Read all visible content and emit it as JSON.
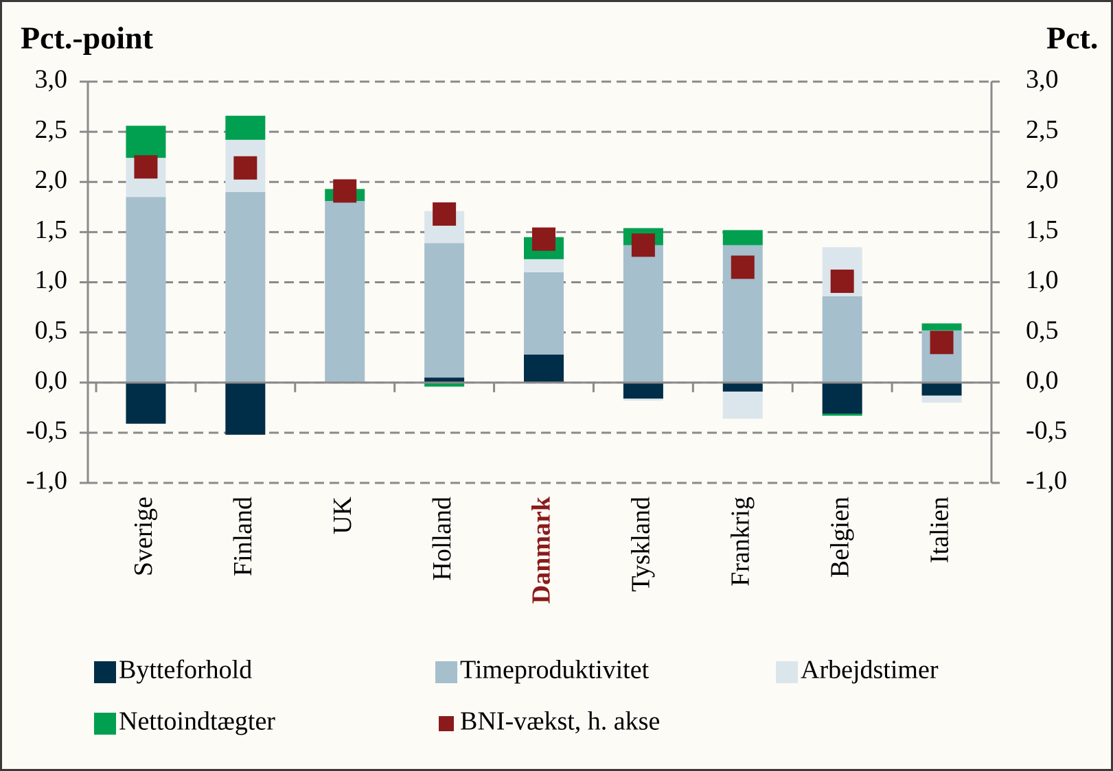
{
  "chart_data": {
    "type": "bar",
    "stacked": true,
    "y_label": "Pct.-point",
    "y2_label": "Pct.",
    "categories": [
      "Sverige",
      "Finland",
      "UK",
      "Holland",
      "Danmark",
      "Tyskland",
      "Frankrig",
      "Belgien",
      "Italien"
    ],
    "highlight": {
      "category": 4,
      "color": "#8b1a1a"
    },
    "series": [
      {
        "name": "Bytteforhold",
        "color": "#002d47",
        "values": [
          -0.41,
          -0.52,
          0,
          0.05,
          0.28,
          -0.16,
          -0.09,
          -0.31,
          -0.13
        ]
      },
      {
        "name": "Timeproduktivitet",
        "color": "#a5bfcd",
        "values": [
          1.85,
          1.9,
          1.81,
          1.34,
          0.82,
          1.37,
          1.37,
          0.86,
          0.52
        ]
      },
      {
        "name": "Arbejdstimer",
        "color": "#dbe6ec",
        "values": [
          0.39,
          0.52,
          0,
          0.32,
          0.13,
          -0.02,
          -0.27,
          0.49,
          -0.07
        ]
      },
      {
        "name": "Nettoindtægter",
        "color": "#00a050",
        "values": [
          0.32,
          0.24,
          0.12,
          -0.04,
          0.22,
          0.17,
          0.15,
          -0.02,
          0.07
        ]
      },
      {
        "name": "BNI-vækst, h. akse",
        "color": "#8b1a1a",
        "axis": "y2",
        "marker": "square",
        "values": [
          2.15,
          2.14,
          1.91,
          1.68,
          1.43,
          1.37,
          1.15,
          1.01,
          0.4
        ]
      }
    ],
    "ylim": [
      -1,
      3
    ],
    "yticks": [
      {
        "value": -1,
        "label": "-1,0"
      },
      {
        "value": -0.5,
        "label": "-0,5"
      },
      {
        "value": 0,
        "label": "0,0"
      },
      {
        "value": 0.5,
        "label": "0,5"
      },
      {
        "value": 1,
        "label": "1,0"
      },
      {
        "value": 1.5,
        "label": "1,5"
      },
      {
        "value": 2,
        "label": "2,0"
      },
      {
        "value": 2.5,
        "label": "2,5"
      },
      {
        "value": 3,
        "label": "3,0"
      }
    ],
    "y2lim": [
      -1,
      3
    ],
    "y2ticks": [
      {
        "value": -1,
        "label": "-1,0"
      },
      {
        "value": -0.5,
        "label": "-0,5"
      },
      {
        "value": 0,
        "label": "0,0"
      },
      {
        "value": 0.5,
        "label": "0,5"
      },
      {
        "value": 1,
        "label": "1,0"
      },
      {
        "value": 1.5,
        "label": "1,5"
      },
      {
        "value": 2,
        "label": "2,0"
      },
      {
        "value": 2.5,
        "label": "2,5"
      },
      {
        "value": 3,
        "label": "3,0"
      }
    ],
    "grid": true
  }
}
